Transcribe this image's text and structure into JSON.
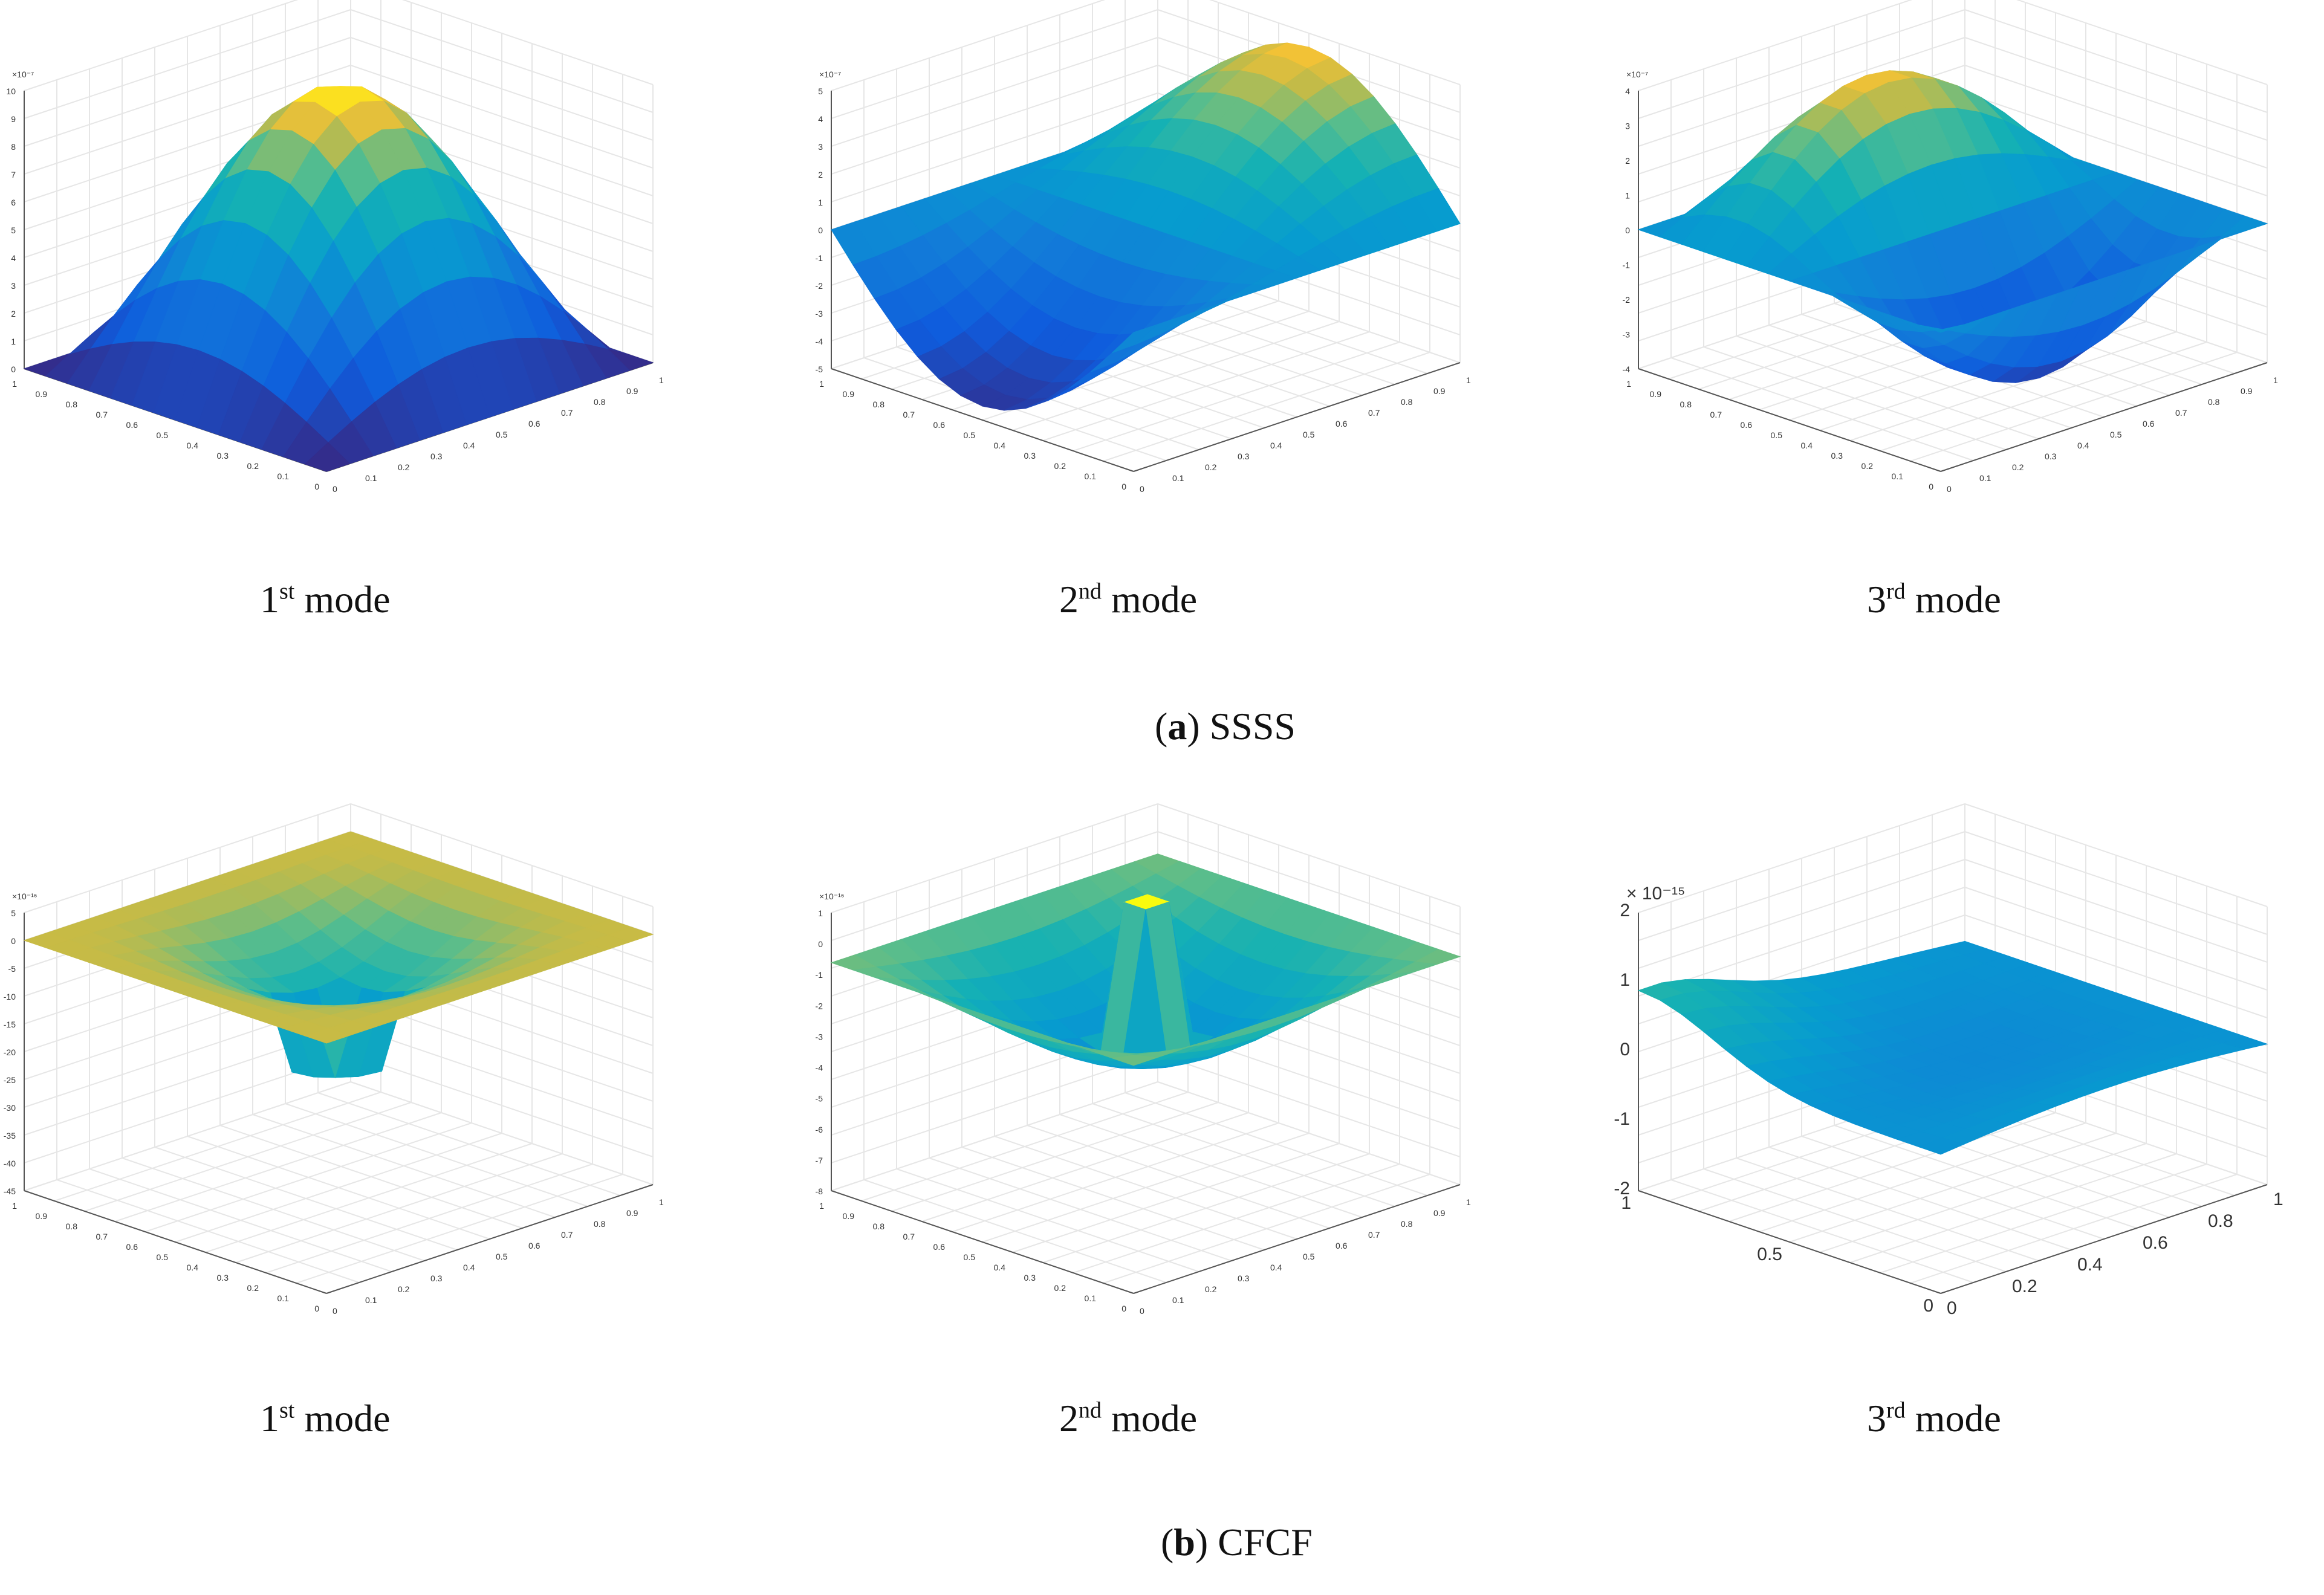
{
  "figure": {
    "groups": [
      {
        "id": "a",
        "letter": "a",
        "name": "SSSS",
        "panels": [
          {
            "mode_number": "1",
            "suffix": "st",
            "mode_word": "mode",
            "scale_label": "×10⁻⁷",
            "chart_data": {
              "type": "surface",
              "boundary": "SSSS",
              "zlim": [
                0,
                10
              ],
              "z_ticks": [
                "0",
                "1",
                "2",
                "3",
                "4",
                "5",
                "6",
                "7",
                "8",
                "9",
                "10"
              ],
              "x_ticks": [
                "0",
                "0.1",
                "0.2",
                "0.3",
                "0.4",
                "0.5",
                "0.6",
                "0.7",
                "0.8",
                "0.9",
                "1"
              ],
              "y_ticks": [
                "0",
                "0.1",
                "0.2",
                "0.3",
                "0.4",
                "0.5",
                "0.6",
                "0.7",
                "0.8",
                "0.9",
                "1"
              ]
            }
          },
          {
            "mode_number": "2",
            "suffix": "nd",
            "mode_word": "mode",
            "scale_label": "×10⁻⁷",
            "chart_data": {
              "type": "surface",
              "boundary": "SSSS",
              "zlim": [
                -5,
                5
              ],
              "z_ticks": [
                "-5",
                "-4",
                "-3",
                "-2",
                "-1",
                "0",
                "1",
                "2",
                "3",
                "4",
                "5"
              ],
              "x_ticks": [
                "0",
                "0.1",
                "0.2",
                "0.3",
                "0.4",
                "0.5",
                "0.6",
                "0.7",
                "0.8",
                "0.9",
                "1"
              ],
              "y_ticks": [
                "0",
                "0.1",
                "0.2",
                "0.3",
                "0.4",
                "0.5",
                "0.6",
                "0.7",
                "0.8",
                "0.9",
                "1"
              ]
            }
          },
          {
            "mode_number": "3",
            "suffix": "rd",
            "mode_word": "mode",
            "scale_label": "×10⁻⁷",
            "chart_data": {
              "type": "surface",
              "boundary": "SSSS",
              "zlim": [
                -4,
                4
              ],
              "z_ticks": [
                "-4",
                "-3",
                "-2",
                "-1",
                "0",
                "1",
                "2",
                "3",
                "4"
              ],
              "x_ticks": [
                "0",
                "0.1",
                "0.2",
                "0.3",
                "0.4",
                "0.5",
                "0.6",
                "0.7",
                "0.8",
                "0.9",
                "1"
              ],
              "y_ticks": [
                "0",
                "0.1",
                "0.2",
                "0.3",
                "0.4",
                "0.5",
                "0.6",
                "0.7",
                "0.8",
                "0.9",
                "1"
              ]
            }
          }
        ]
      },
      {
        "id": "b",
        "letter": "b",
        "name": "CFCF",
        "panels": [
          {
            "mode_number": "1",
            "suffix": "st",
            "mode_word": "mode",
            "scale_label": "×10⁻¹⁶",
            "chart_data": {
              "type": "surface",
              "boundary": "CFCF",
              "zlim": [
                -45,
                5
              ],
              "z_ticks": [
                "-45",
                "-40",
                "-35",
                "-30",
                "-25",
                "-20",
                "-15",
                "-10",
                "-5",
                "0",
                "5"
              ],
              "x_ticks": [
                "0",
                "0.1",
                "0.2",
                "0.3",
                "0.4",
                "0.5",
                "0.6",
                "0.7",
                "0.8",
                "0.9",
                "1"
              ],
              "y_ticks": [
                "0",
                "0.1",
                "0.2",
                "0.3",
                "0.4",
                "0.5",
                "0.6",
                "0.7",
                "0.8",
                "0.9",
                "1"
              ]
            }
          },
          {
            "mode_number": "2",
            "suffix": "nd",
            "mode_word": "mode",
            "scale_label": "×10⁻¹⁶",
            "chart_data": {
              "type": "surface",
              "boundary": "CFCF",
              "zlim": [
                -8,
                1
              ],
              "z_ticks": [
                "-8",
                "-7",
                "-6",
                "-5",
                "-4",
                "-3",
                "-2",
                "-1",
                "0",
                "1"
              ],
              "x_ticks": [
                "0",
                "0.1",
                "0.2",
                "0.3",
                "0.4",
                "0.5",
                "0.6",
                "0.7",
                "0.8",
                "0.9",
                "1"
              ],
              "y_ticks": [
                "0",
                "0.1",
                "0.2",
                "0.3",
                "0.4",
                "0.5",
                "0.6",
                "0.7",
                "0.8",
                "0.9",
                "1"
              ]
            }
          },
          {
            "mode_number": "3",
            "suffix": "rd",
            "mode_word": "mode",
            "scale_label": "× 10⁻¹⁵",
            "chart_data": {
              "type": "surface",
              "boundary": "CFCF",
              "zlim": [
                -2,
                2
              ],
              "z_ticks": [
                "-2",
                "-1",
                "0",
                "1",
                "2"
              ],
              "x_ticks": [
                "0",
                "0.2",
                "0.4",
                "0.6",
                "0.8",
                "1"
              ],
              "y_ticks": [
                "0",
                "0.5",
                "1"
              ]
            }
          }
        ]
      }
    ]
  }
}
